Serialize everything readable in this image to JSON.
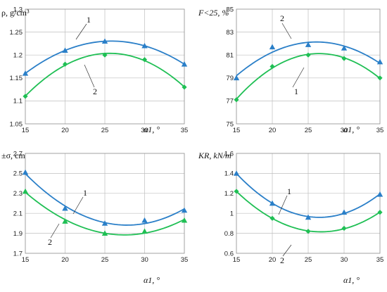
{
  "colors": {
    "series1": "#2a7fc8",
    "series2": "#1fbf54",
    "grid": "#bfbfbf"
  },
  "chart_data": [
    {
      "type": "scatter",
      "panel": "top-left",
      "ylabel": "ρ, g/cm³",
      "xlabel": "α1, °",
      "x": [
        15,
        20,
        25,
        30,
        35
      ],
      "xlim": [
        15,
        35
      ],
      "ylim": [
        1.05,
        1.3
      ],
      "yticks": [
        "1.05",
        "1.1",
        "1.15",
        "1.2",
        "1.25",
        "1.3"
      ],
      "xticks": [
        "15",
        "20",
        "25",
        "30",
        "35"
      ],
      "grid": true,
      "series": [
        {
          "name": "1",
          "marker": "triangle",
          "values": [
            1.16,
            1.21,
            1.23,
            1.22,
            1.18
          ]
        },
        {
          "name": "2",
          "marker": "diamond",
          "values": [
            1.11,
            1.18,
            1.2,
            1.19,
            1.13
          ]
        }
      ]
    },
    {
      "type": "scatter",
      "panel": "top-right",
      "ylabel": "F<25, %",
      "xlabel": "α1, °",
      "x": [
        15,
        20,
        25,
        30,
        35
      ],
      "xlim": [
        15,
        35
      ],
      "ylim": [
        75,
        85
      ],
      "yticks": [
        "75",
        "77",
        "79",
        "81",
        "83",
        "85"
      ],
      "xticks": [
        "15",
        "20",
        "25",
        "30",
        "35"
      ],
      "grid": true,
      "series": [
        {
          "name": "2",
          "marker": "triangle",
          "values": [
            79.0,
            81.7,
            81.9,
            81.6,
            80.4
          ]
        },
        {
          "name": "1",
          "marker": "diamond",
          "values": [
            77.1,
            80.0,
            81.0,
            80.7,
            79.0
          ]
        }
      ]
    },
    {
      "type": "scatter",
      "panel": "bottom-left",
      "ylabel": "±σ, cm",
      "xlabel": "α1, °",
      "x": [
        15,
        20,
        25,
        30,
        35
      ],
      "xlim": [
        15,
        35
      ],
      "ylim": [
        1.7,
        2.7
      ],
      "yticks": [
        "1.7",
        "1.9",
        "2.1",
        "2.3",
        "2.5",
        "2.7"
      ],
      "xticks": [
        "15",
        "20",
        "25",
        "30",
        "35"
      ],
      "grid": true,
      "series": [
        {
          "name": "1",
          "marker": "triangle",
          "values": [
            2.51,
            2.15,
            2.0,
            2.03,
            2.13
          ]
        },
        {
          "name": "2",
          "marker": "triangle",
          "values": [
            2.32,
            2.02,
            1.9,
            1.92,
            2.03
          ]
        }
      ]
    },
    {
      "type": "scatter",
      "panel": "bottom-right",
      "ylabel": "KR, kN/m",
      "xlabel": "α1, °",
      "x": [
        15,
        20,
        25,
        30,
        35
      ],
      "xlim": [
        15,
        35
      ],
      "ylim": [
        0.6,
        1.6
      ],
      "yticks": [
        "0.6",
        "0.8",
        "1",
        "1.2",
        "1.4",
        "1.6"
      ],
      "xticks": [
        "15",
        "20",
        "25",
        "30",
        "35"
      ],
      "grid": true,
      "series": [
        {
          "name": "1",
          "marker": "triangle",
          "values": [
            1.4,
            1.1,
            0.96,
            1.01,
            1.19
          ]
        },
        {
          "name": "2",
          "marker": "diamond",
          "values": [
            1.22,
            0.95,
            0.82,
            0.85,
            1.01
          ]
        }
      ]
    }
  ]
}
